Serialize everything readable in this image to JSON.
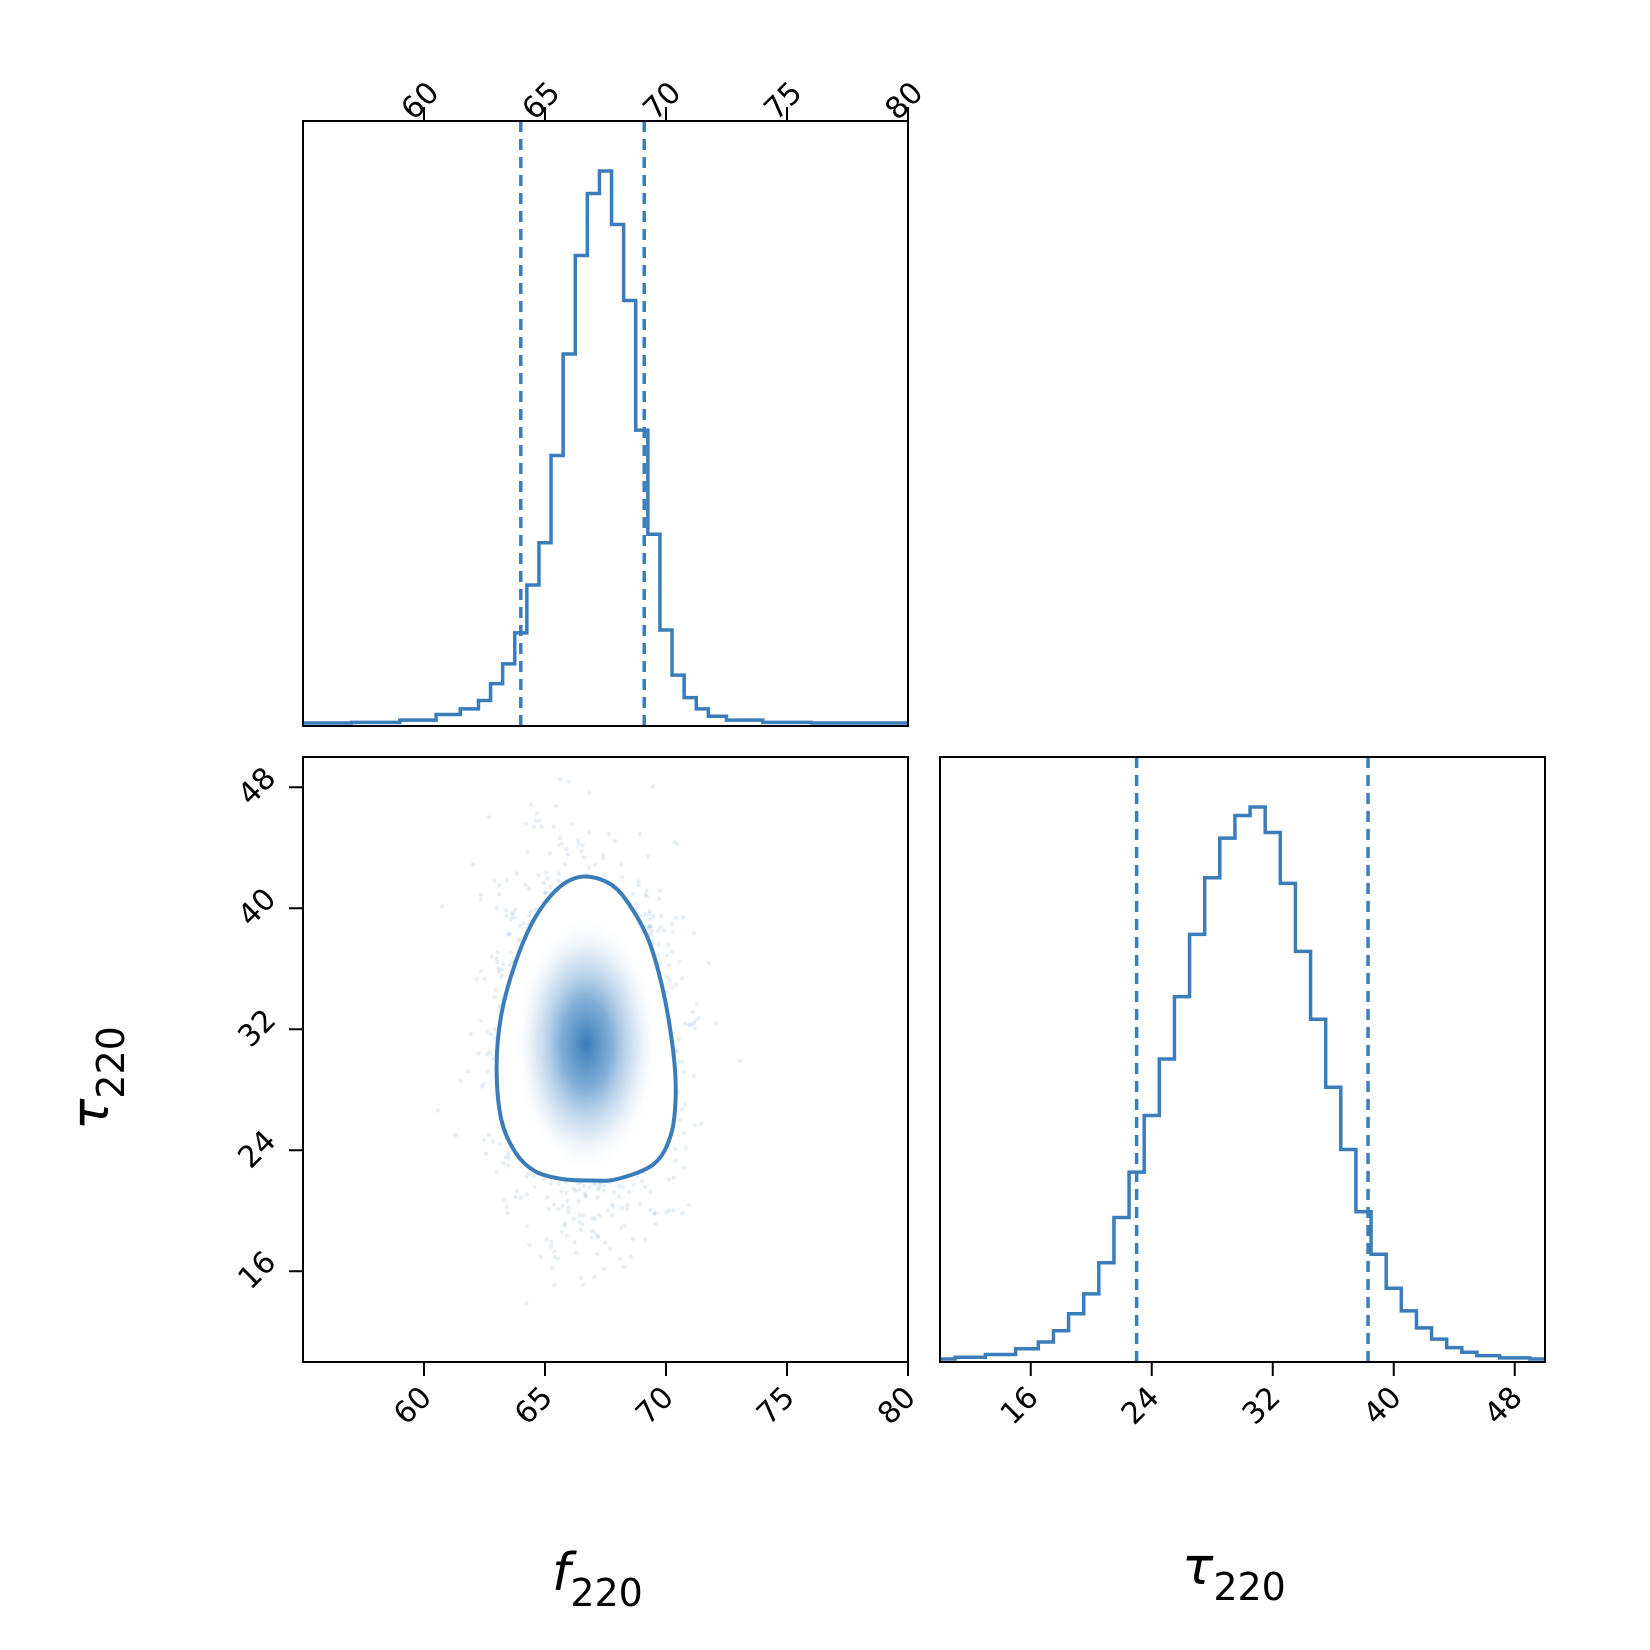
{
  "chart_data": [
    {
      "panel": "f220-marginal",
      "type": "histogram",
      "x": [
        58.0,
        60.0,
        61.0,
        62.0,
        62.5,
        63.0,
        63.5,
        64.0,
        64.5,
        65.0,
        65.5,
        66.0,
        66.5,
        67.0,
        67.5,
        68.0,
        68.5,
        69.0,
        69.5,
        70.0,
        70.5,
        71.0,
        71.5,
        72.0,
        73.0,
        75.0
      ],
      "values": [
        0.001,
        0.005,
        0.015,
        0.025,
        0.04,
        0.07,
        0.105,
        0.16,
        0.245,
        0.32,
        0.475,
        0.655,
        0.83,
        0.94,
        0.98,
        0.885,
        0.75,
        0.52,
        0.335,
        0.165,
        0.085,
        0.045,
        0.025,
        0.012,
        0.005,
        0.001
      ],
      "xlim": [
        55,
        80
      ],
      "quantile_lines": [
        64.0,
        69.1
      ],
      "tick_labels": [
        "60",
        "65",
        "70",
        "75",
        "80"
      ],
      "xlabel": "",
      "ylabel": ""
    },
    {
      "panel": "f220-tau220-joint",
      "type": "scatter",
      "xlim": [
        55,
        80
      ],
      "ylim": [
        10,
        50
      ],
      "x_tick_labels": [
        "60",
        "65",
        "70",
        "75",
        "80"
      ],
      "y_tick_labels": [
        "16",
        "24",
        "32",
        "40",
        "48"
      ],
      "density_peak": {
        "f220": 66.7,
        "tau220": 31.0
      },
      "contour_points": [
        {
          "f220": 66.6,
          "tau220": 42.1
        },
        {
          "f220": 67.7,
          "tau220": 41.6
        },
        {
          "f220": 68.5,
          "tau220": 40.2
        },
        {
          "f220": 69.3,
          "tau220": 37.8
        },
        {
          "f220": 69.9,
          "tau220": 34.4
        },
        {
          "f220": 70.3,
          "tau220": 30.5
        },
        {
          "f220": 70.4,
          "tau220": 27.6
        },
        {
          "f220": 70.2,
          "tau220": 25.0
        },
        {
          "f220": 69.5,
          "tau220": 23.1
        },
        {
          "f220": 68.0,
          "tau220": 22.1
        },
        {
          "f220": 66.9,
          "tau220": 22.0
        },
        {
          "f220": 65.7,
          "tau220": 22.1
        },
        {
          "f220": 64.6,
          "tau220": 22.6
        },
        {
          "f220": 63.8,
          "tau220": 23.8
        },
        {
          "f220": 63.2,
          "tau220": 26.0
        },
        {
          "f220": 63.0,
          "tau220": 29.5
        },
        {
          "f220": 63.2,
          "tau220": 33.0
        },
        {
          "f220": 63.8,
          "tau220": 36.5
        },
        {
          "f220": 64.6,
          "tau220": 39.4
        },
        {
          "f220": 65.6,
          "tau220": 41.4
        }
      ],
      "xlabel": "f",
      "ylabel": "τ"
    },
    {
      "panel": "tau220-marginal",
      "type": "histogram",
      "x": [
        12,
        14,
        16,
        17,
        18,
        19,
        20,
        21,
        22,
        23,
        24,
        25,
        26,
        27,
        28,
        29,
        30,
        31,
        32,
        33,
        34,
        35,
        36,
        37,
        38,
        39,
        40,
        41,
        42,
        43,
        44,
        45,
        46,
        48
      ],
      "values": [
        0.003,
        0.008,
        0.018,
        0.03,
        0.05,
        0.08,
        0.115,
        0.17,
        0.25,
        0.33,
        0.43,
        0.53,
        0.64,
        0.75,
        0.85,
        0.92,
        0.96,
        0.975,
        0.93,
        0.84,
        0.72,
        0.6,
        0.48,
        0.37,
        0.26,
        0.185,
        0.125,
        0.085,
        0.055,
        0.035,
        0.02,
        0.012,
        0.006,
        0.002
      ],
      "xlim": [
        10,
        50
      ],
      "quantile_lines": [
        23.0,
        38.3
      ],
      "tick_labels": [
        "16",
        "24",
        "32",
        "40",
        "48"
      ],
      "xlabel": "τ",
      "ylabel": ""
    }
  ],
  "labels": {
    "f_symbol": "f",
    "f_sub": "220",
    "tau_symbol": "τ",
    "tau_sub": "220"
  },
  "colors": {
    "series": "#3a7dba",
    "scatter": "#6a9cc8",
    "axes": "#000000"
  }
}
